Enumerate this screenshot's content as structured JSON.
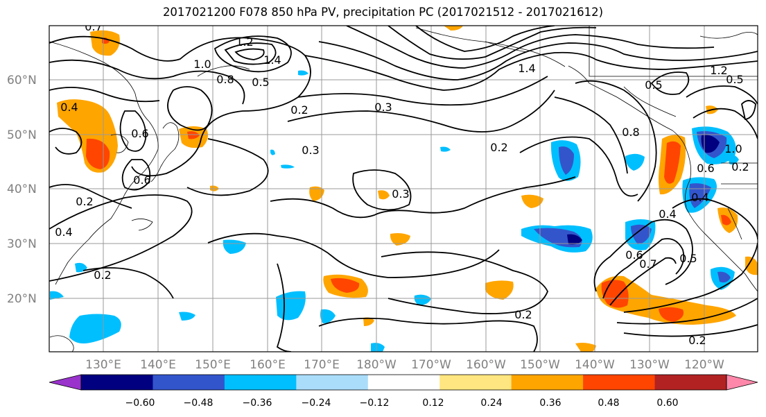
{
  "title": "2017021200 F078 850 hPa PV, precipitation PC (2017021512 - 2017021612)",
  "lat_labels": [
    "60°N",
    "50°N",
    "40°N",
    "30°N",
    "20°N"
  ],
  "lon_labels": [
    "130°E",
    "140°E",
    "150°E",
    "160°E",
    "170°E",
    "180°W",
    "170°W",
    "160°W",
    "150°W",
    "140°W",
    "130°W",
    "120°W"
  ],
  "contour_labels": [
    "0.7",
    "1.2",
    "1.0",
    "1.4",
    "0.8",
    "0.5",
    "0.2",
    "0.3",
    "0.4",
    "0.6",
    "0.6",
    "0.3",
    "0.2",
    "0.3",
    "0.2",
    "0.8",
    "0.5",
    "1.2",
    "1.0",
    "0.2",
    "0.5",
    "0.4",
    "0.6",
    "0.7",
    "0.5",
    "0.4",
    "0.2",
    "1.4",
    "0.6",
    "0.2",
    "0.4",
    "0.2"
  ],
  "colorbar": {
    "colors": [
      "#9933cc",
      "#000080",
      "#3355cc",
      "#00bfff",
      "#aaddfa",
      "#ffffff",
      "#ffe680",
      "#ffa500",
      "#ff4500",
      "#b22222",
      "#ff88aa"
    ],
    "tick_labels": [
      "−0.60",
      "−0.48",
      "−0.36",
      "−0.24",
      "−0.12",
      "0.12",
      "0.24",
      "0.36",
      "0.48",
      "0.60"
    ]
  },
  "colors": {
    "grid": "#999999",
    "contour": "#000000",
    "axis_label": "#808080"
  }
}
